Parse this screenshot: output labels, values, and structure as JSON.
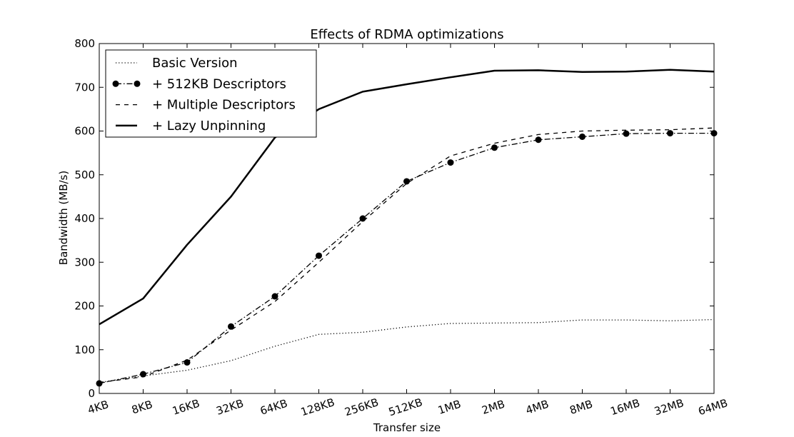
{
  "chart_data": {
    "type": "line",
    "title": "Effects of RDMA optimizations",
    "xlabel": "Transfer size",
    "ylabel": "Bandwidth (MB/s)",
    "categories": [
      "4KB",
      "8KB",
      "16KB",
      "32KB",
      "64KB",
      "128KB",
      "256KB",
      "512KB",
      "1MB",
      "2MB",
      "4MB",
      "8MB",
      "16MB",
      "32MB",
      "64MB"
    ],
    "ylim": [
      0,
      800
    ],
    "yticks": [
      0,
      100,
      200,
      300,
      400,
      500,
      600,
      700,
      800
    ],
    "grid": false,
    "legend_position": "top-left",
    "series": [
      {
        "name": "Basic Version",
        "style": "dotted",
        "marker": "none",
        "values": [
          25,
          40,
          53,
          75,
          108,
          135,
          140,
          152,
          160,
          161,
          162,
          168,
          168,
          166,
          169
        ]
      },
      {
        "name": "+ 512KB Descriptors",
        "style": "dashdot",
        "marker": "circle",
        "values": [
          23,
          44,
          71,
          153,
          222,
          315,
          400,
          485,
          528,
          562,
          580,
          587,
          594,
          595,
          595
        ]
      },
      {
        "name": "+ Multiple Descriptors",
        "style": "dashed",
        "marker": "none",
        "values": [
          25,
          38,
          76,
          145,
          210,
          300,
          393,
          480,
          543,
          572,
          592,
          600,
          602,
          603,
          607
        ]
      },
      {
        "name": "+ Lazy Unpinning",
        "style": "solid",
        "marker": "none",
        "values": [
          158,
          217,
          340,
          450,
          585,
          650,
          690,
          707,
          723,
          738,
          739,
          735,
          736,
          740,
          736
        ]
      }
    ],
    "colors": {
      "line": "#000000",
      "background": "#ffffff"
    }
  }
}
